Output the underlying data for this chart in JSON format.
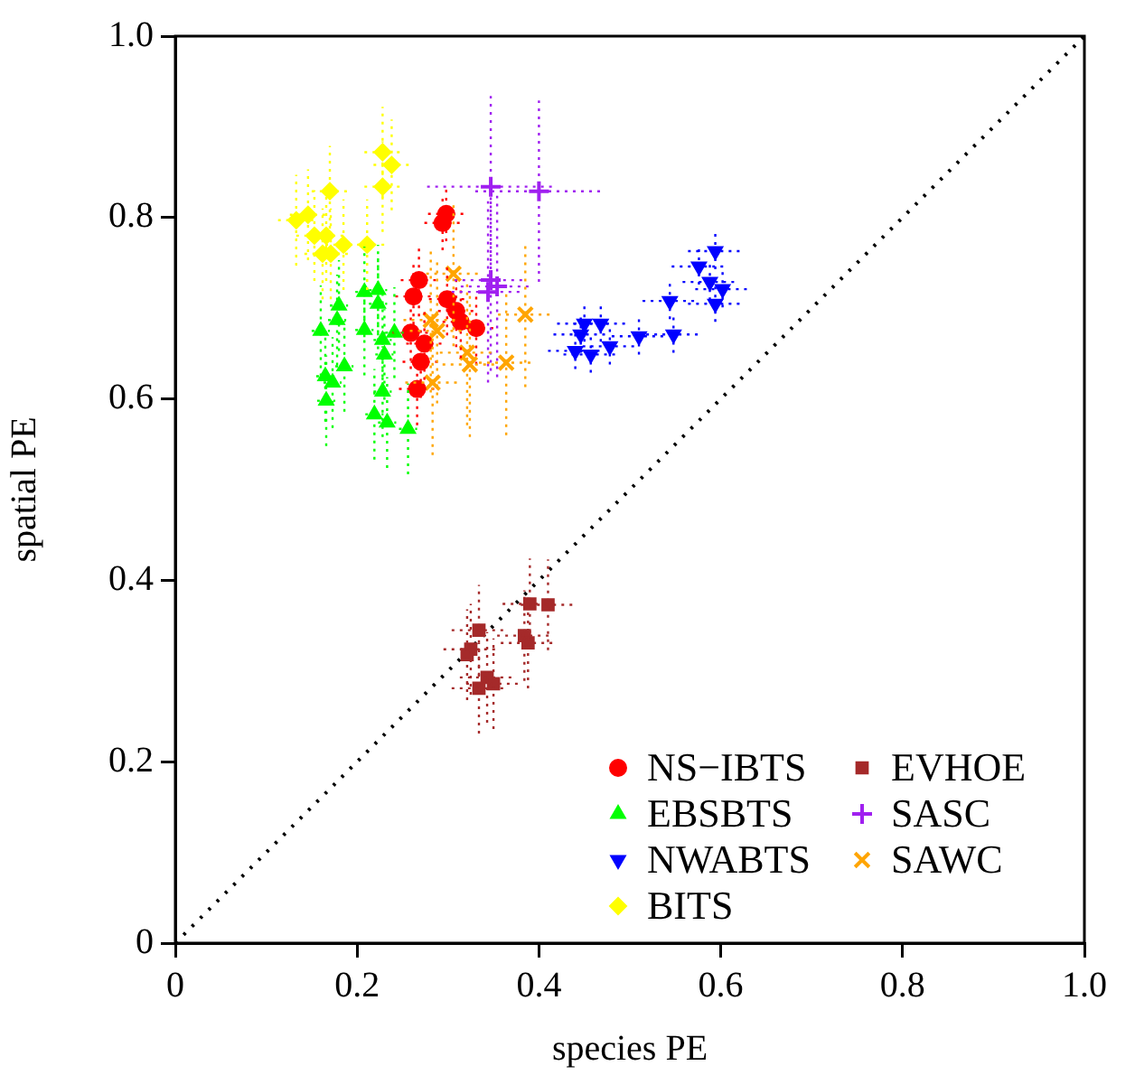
{
  "chart_data": {
    "type": "scatter",
    "xlabel": "species PE",
    "ylabel": "spatial PE",
    "xlim": [
      0,
      1
    ],
    "ylim": [
      0,
      1
    ],
    "xticks": [
      0,
      0.2,
      0.4,
      0.6,
      0.8,
      {
        "value": 1,
        "label": "1.0"
      }
    ],
    "yticks": [
      0,
      0.2,
      0.4,
      0.6,
      0.8,
      {
        "value": 1,
        "label": "1.0"
      }
    ],
    "grid": false,
    "legend": "bottom right",
    "series": [
      {
        "name": "NS−IBTS",
        "color": "#ff0000",
        "marker": "circle",
        "x": [
          0.298,
          0.294,
          0.268,
          0.262,
          0.299,
          0.309,
          0.314,
          0.331,
          0.259,
          0.274,
          0.27,
          0.266
        ],
        "values": [
          0.804,
          0.794,
          0.731,
          0.713,
          0.71,
          0.697,
          0.685,
          0.678,
          0.673,
          0.661,
          0.641,
          0.611
        ],
        "xerrors": [
          0.02,
          0.02,
          0.02,
          0.02,
          0.02,
          0.02,
          0.02,
          0.02,
          0.02,
          0.02,
          0.02,
          0.02
        ],
        "errors": [
          0.03,
          0.03,
          0.04,
          0.04,
          0.04,
          0.04,
          0.04,
          0.04,
          0.04,
          0.04,
          0.04,
          0.04
        ]
      },
      {
        "name": "EBSBTS",
        "color": "#00ff00",
        "marker": "triangle",
        "x": [
          0.208,
          0.223,
          0.223,
          0.18,
          0.178,
          0.16,
          0.208,
          0.241,
          0.228,
          0.23,
          0.186,
          0.165,
          0.173,
          0.166,
          0.228,
          0.219,
          0.233,
          0.256
        ],
        "values": [
          0.718,
          0.72,
          0.705,
          0.703,
          0.687,
          0.675,
          0.676,
          0.673,
          0.665,
          0.649,
          0.636,
          0.625,
          0.618,
          0.598,
          0.608,
          0.583,
          0.574,
          0.567
        ],
        "xerrors": [
          0.01,
          0.01,
          0.01,
          0.01,
          0.01,
          0.01,
          0.01,
          0.01,
          0.01,
          0.01,
          0.01,
          0.01,
          0.01,
          0.01,
          0.01,
          0.01,
          0.01,
          0.01
        ],
        "errors": [
          0.05,
          0.05,
          0.05,
          0.05,
          0.05,
          0.05,
          0.05,
          0.05,
          0.05,
          0.05,
          0.05,
          0.05,
          0.05,
          0.05,
          0.05,
          0.05,
          0.05,
          0.05
        ]
      },
      {
        "name": "NWABTS",
        "color": "#0000ff",
        "marker": "triangle-down",
        "x": [
          0.594,
          0.576,
          0.588,
          0.602,
          0.594,
          0.544,
          0.548,
          0.51,
          0.478,
          0.45,
          0.468,
          0.446,
          0.44,
          0.457
        ],
        "values": [
          0.763,
          0.746,
          0.729,
          0.721,
          0.705,
          0.708,
          0.671,
          0.669,
          0.658,
          0.683,
          0.683,
          0.671,
          0.653,
          0.649
        ],
        "xerrors": [
          0.03,
          0.03,
          0.03,
          0.03,
          0.03,
          0.03,
          0.03,
          0.03,
          0.03,
          0.03,
          0.03,
          0.03,
          0.03,
          0.03
        ],
        "errors": [
          0.02,
          0.02,
          0.02,
          0.02,
          0.02,
          0.02,
          0.02,
          0.02,
          0.02,
          0.02,
          0.02,
          0.02,
          0.02,
          0.02
        ]
      },
      {
        "name": "BITS",
        "color": "#ffff00",
        "marker": "diamond",
        "x": [
          0.228,
          0.238,
          0.17,
          0.228,
          0.133,
          0.146,
          0.153,
          0.166,
          0.185,
          0.211,
          0.162,
          0.171
        ],
        "values": [
          0.872,
          0.858,
          0.829,
          0.834,
          0.797,
          0.803,
          0.78,
          0.78,
          0.77,
          0.77,
          0.76,
          0.76
        ],
        "xerrors": [
          0.02,
          0.02,
          0.02,
          0.02,
          0.02,
          0.02,
          0.02,
          0.02,
          0.02,
          0.02,
          0.02,
          0.02
        ],
        "errors": [
          0.05,
          0.05,
          0.05,
          0.05,
          0.05,
          0.05,
          0.05,
          0.05,
          0.05,
          0.05,
          0.05,
          0.05
        ]
      },
      {
        "name": "EVHOE",
        "color": "#a52a2a",
        "marker": "square",
        "x": [
          0.39,
          0.41,
          0.334,
          0.384,
          0.388,
          0.325,
          0.321,
          0.343,
          0.35,
          0.334
        ],
        "values": [
          0.374,
          0.373,
          0.345,
          0.339,
          0.331,
          0.324,
          0.318,
          0.293,
          0.286,
          0.281
        ],
        "xerrors": [
          0.03,
          0.03,
          0.03,
          0.03,
          0.03,
          0.03,
          null,
          0.03,
          0.03,
          0.03
        ],
        "errors": [
          0.05,
          0.05,
          0.05,
          0.05,
          0.05,
          0.05,
          0.05,
          0.05,
          0.05,
          0.05
        ]
      },
      {
        "name": "SASC",
        "color": "#a020f0",
        "marker": "cross",
        "x": [
          0.347,
          0.4,
          0.347,
          0.354,
          0.344
        ],
        "values": [
          0.834,
          0.829,
          0.731,
          0.724,
          0.718
        ],
        "xerrors": [
          0.07,
          0.07,
          0.04,
          0.04,
          0.04
        ],
        "errors": [
          0.1,
          0.1,
          0.1,
          0.1,
          0.1
        ]
      },
      {
        "name": "SAWC",
        "color": "#ffa500",
        "marker": "x",
        "x": [
          0.306,
          0.281,
          0.288,
          0.385,
          0.321,
          0.324,
          0.364,
          0.283
        ],
        "values": [
          0.738,
          0.687,
          0.675,
          0.693,
          0.651,
          0.638,
          0.64,
          0.618
        ],
        "xerrors": [
          0.03,
          0.03,
          0.03,
          0.03,
          0.03,
          0.03,
          0.03,
          0.03
        ],
        "errors": [
          0.08,
          0.08,
          0.08,
          0.08,
          0.08,
          0.08,
          0.08,
          0.08
        ]
      },
      {
        "type": "line",
        "color": "#000000",
        "line_style": "dotted",
        "x": [
          0,
          1
        ],
        "values": [
          0,
          1
        ]
      }
    ]
  }
}
